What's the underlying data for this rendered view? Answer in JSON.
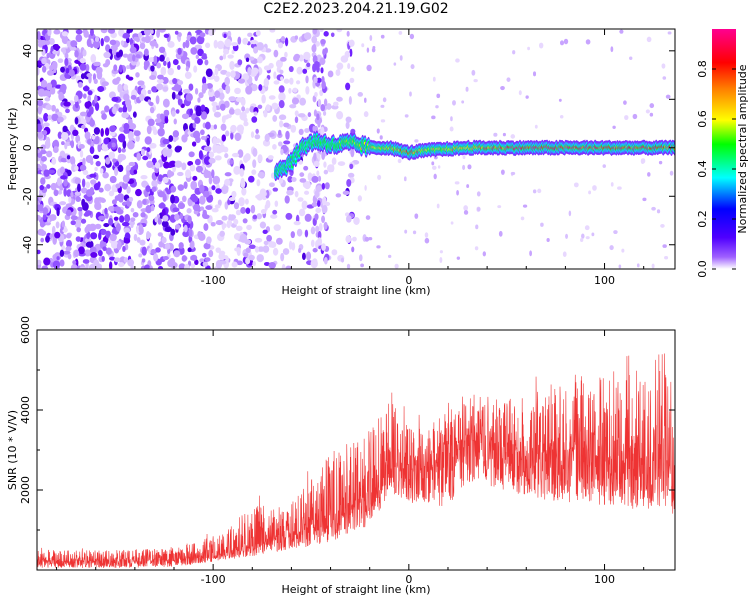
{
  "title": "C2E2.2023.204.21.19.G02",
  "chart_data": [
    {
      "type": "heatmap",
      "title": "C2E2.2023.204.21.19.G02",
      "xlabel": "Height of straight line (km)",
      "ylabel": "Frequency (Hz)",
      "xlim": [
        -190,
        136
      ],
      "ylim": [
        -50,
        49
      ],
      "x_ticks": [
        -100,
        0,
        100
      ],
      "y_ticks": [
        -40,
        -20,
        0,
        20,
        40
      ],
      "colorbar": {
        "label": "Normalized spectral amplitude",
        "range": [
          0,
          0.96
        ],
        "ticks": [
          0.0,
          0.2,
          0.4,
          0.6,
          0.8
        ],
        "colormap": [
          "#ffffff",
          "#6a00ff",
          "#0000ff",
          "#00ffff",
          "#00ff00",
          "#ffff00",
          "#ff0000",
          "#ff00a0"
        ]
      },
      "signal_track": [
        {
          "x": -68,
          "y": -10,
          "amp": 0.35
        },
        {
          "x": -60,
          "y": -6,
          "amp": 0.4
        },
        {
          "x": -55,
          "y": 0,
          "amp": 0.45
        },
        {
          "x": -48,
          "y": 3,
          "amp": 0.45
        },
        {
          "x": -38,
          "y": 1,
          "amp": 0.5
        },
        {
          "x": -30,
          "y": 2,
          "amp": 0.55
        },
        {
          "x": -20,
          "y": 0,
          "amp": 0.6
        },
        {
          "x": -10,
          "y": 0,
          "amp": 0.65
        },
        {
          "x": 0,
          "y": -2,
          "amp": 0.8
        },
        {
          "x": 10,
          "y": -1,
          "amp": 0.6
        },
        {
          "x": 30,
          "y": 0,
          "amp": 0.7
        },
        {
          "x": 60,
          "y": 0,
          "amp": 0.9
        },
        {
          "x": 90,
          "y": 0,
          "amp": 0.85
        },
        {
          "x": 120,
          "y": 0,
          "amp": 0.8
        },
        {
          "x": 136,
          "y": 0,
          "amp": 0.8
        }
      ],
      "noise_region_xlim": [
        -190,
        -30
      ]
    },
    {
      "type": "line",
      "xlabel": "Height of straight line (km)",
      "ylabel": "SNR (10 * V/V)",
      "xlim": [
        -190,
        136
      ],
      "ylim": [
        0,
        6000
      ],
      "x_ticks": [
        -100,
        0,
        100
      ],
      "y_ticks": [
        2000,
        4000,
        6000
      ],
      "color": "#ee3333",
      "envelope": {
        "x": [
          -190,
          -150,
          -120,
          -100,
          -80,
          -60,
          -40,
          -20,
          -10,
          0,
          10,
          20,
          30,
          40,
          60,
          80,
          100,
          120,
          136
        ],
        "y_low": [
          50,
          50,
          80,
          200,
          350,
          500,
          700,
          1100,
          1900,
          1700,
          1500,
          1600,
          2200,
          2100,
          1800,
          1700,
          1600,
          1500,
          1400
        ],
        "y_mid": [
          200,
          220,
          250,
          350,
          650,
          850,
          1300,
          1900,
          2600,
          2500,
          2500,
          2900,
          3400,
          3200,
          2900,
          3000,
          2800,
          2700,
          2600
        ],
        "y_high": [
          500,
          500,
          550,
          900,
          1600,
          1700,
          3000,
          3500,
          4300,
          3600,
          3500,
          4200,
          4400,
          4400,
          4300,
          4900,
          5000,
          5000,
          6000
        ]
      }
    }
  ]
}
